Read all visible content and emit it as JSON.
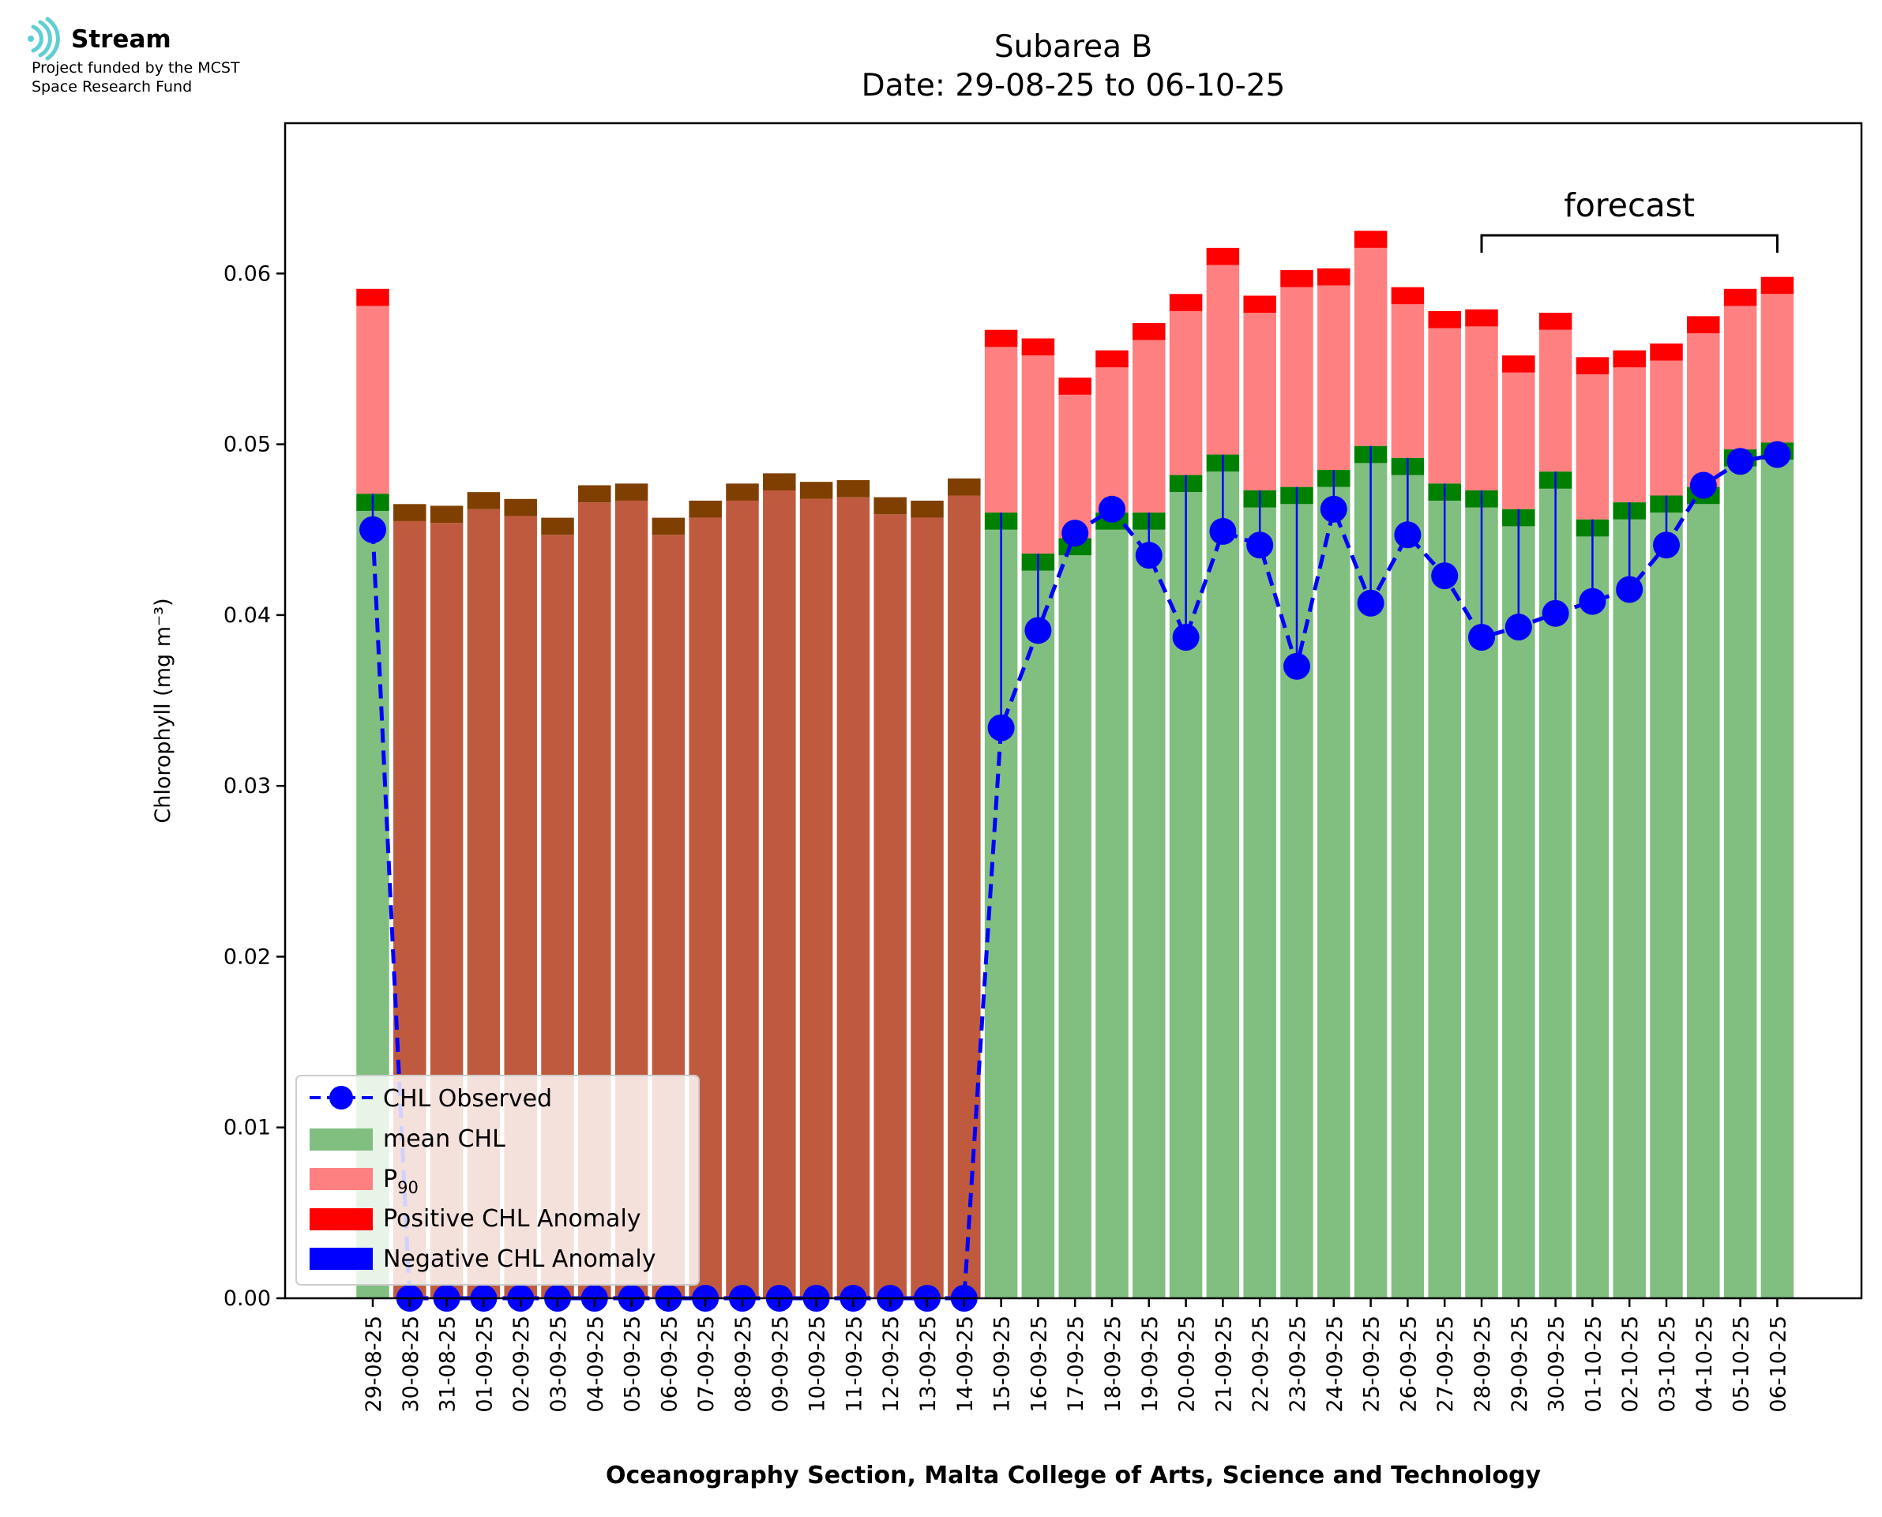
{
  "logo": {
    "name": "Stream",
    "line1": "Project funded by the MCST",
    "line2": "Space Research Fund"
  },
  "chart_data": {
    "type": "bar",
    "title": "Subarea B",
    "subtitle": "Date: 29-08-25 to 06-10-25",
    "xlabel": "Oceanography Section, Malta College of Arts, Science and Technology",
    "ylabel": "Chlorophyll (mg m⁻³)",
    "ylim": [
      0,
      0.0688
    ],
    "yticks": [
      0.0,
      0.01,
      0.02,
      0.03,
      0.04,
      0.05,
      0.06
    ],
    "ytick_labels": [
      "0.00",
      "0.01",
      "0.02",
      "0.03",
      "0.04",
      "0.05",
      "0.06"
    ],
    "categories": [
      "29-08-25",
      "30-08-25",
      "31-08-25",
      "01-09-25",
      "02-09-25",
      "03-09-25",
      "04-09-25",
      "05-09-25",
      "06-09-25",
      "07-09-25",
      "08-09-25",
      "09-09-25",
      "10-09-25",
      "11-09-25",
      "12-09-25",
      "13-09-25",
      "14-09-25",
      "15-09-25",
      "16-09-25",
      "17-09-25",
      "18-09-25",
      "19-09-25",
      "20-09-25",
      "21-09-25",
      "22-09-25",
      "23-09-25",
      "24-09-25",
      "25-09-25",
      "26-09-25",
      "27-09-25",
      "28-09-25",
      "29-09-25",
      "30-09-25",
      "01-10-25",
      "02-10-25",
      "03-10-25",
      "04-10-25",
      "05-10-25",
      "06-10-25"
    ],
    "series": [
      {
        "name": "CHL Observed",
        "values": [
          0.045,
          0,
          0,
          0,
          0,
          0,
          0,
          0,
          0,
          0,
          0,
          0,
          0,
          0,
          0,
          0,
          0,
          0.0334,
          0.0391,
          0.0448,
          0.0462,
          0.0435,
          0.0387,
          0.0449,
          0.0441,
          0.037,
          0.0462,
          0.0407,
          0.0447,
          0.0423,
          0.0387,
          0.0393,
          0.0401,
          0.0408,
          0.0415,
          0.0441,
          0.0476,
          0.049,
          0.0494
        ]
      },
      {
        "name": "mean CHL",
        "values": [
          0.0471,
          0.0465,
          0.0464,
          0.0472,
          0.0468,
          0.0457,
          0.0476,
          0.0477,
          0.0457,
          0.0467,
          0.0477,
          0.0483,
          0.0478,
          0.0479,
          0.0469,
          0.0467,
          0.048,
          0.046,
          0.0436,
          0.0445,
          0.046,
          0.046,
          0.0482,
          0.0494,
          0.0473,
          0.0475,
          0.0485,
          0.0499,
          0.0492,
          0.0477,
          0.0473,
          0.0462,
          0.0484,
          0.0456,
          0.0466,
          0.047,
          0.0475,
          0.0497,
          0.0501
        ]
      },
      {
        "name": "P90",
        "values": [
          0.0591,
          0,
          0,
          0,
          0,
          0,
          0,
          0,
          0,
          0,
          0,
          0,
          0,
          0,
          0,
          0,
          0,
          0.0567,
          0.0562,
          0.0539,
          0.0555,
          0.0571,
          0.0588,
          0.0615,
          0.0587,
          0.0602,
          0.0603,
          0.0625,
          0.0592,
          0.0578,
          0.0579,
          0.0552,
          0.0577,
          0.0551,
          0.0555,
          0.0559,
          0.0575,
          0.0591,
          0.0598
        ]
      }
    ],
    "forecast": {
      "label": "forecast",
      "from": "28-09-25",
      "to": "06-10-25"
    },
    "legend": {
      "placement": "lower-left",
      "items": [
        {
          "label": "CHL Observed",
          "marker": "line-dot",
          "color": "#0000ff"
        },
        {
          "label": "mean CHL",
          "marker": "patch",
          "color": "#80bf80"
        },
        {
          "label": "P",
          "sub": "90",
          "marker": "patch",
          "color": "#ff8080"
        },
        {
          "label": "Positive CHL Anomaly",
          "marker": "patch",
          "color": "#ff0000"
        },
        {
          "label": "Negative CHL Anomaly",
          "marker": "patch",
          "color": "#0000ff"
        }
      ]
    },
    "colors": {
      "mean": "#80bf80",
      "mean_band": "#008000",
      "p90": "#ff8080",
      "positive_anomaly": "#ff0000",
      "no_data_bar": "#c05a3f",
      "no_data_band": "#7f3f00",
      "observed": "#0000ff",
      "negative_anomaly": "#0000ff",
      "logo": "#5fcfd4"
    },
    "grid": false
  }
}
